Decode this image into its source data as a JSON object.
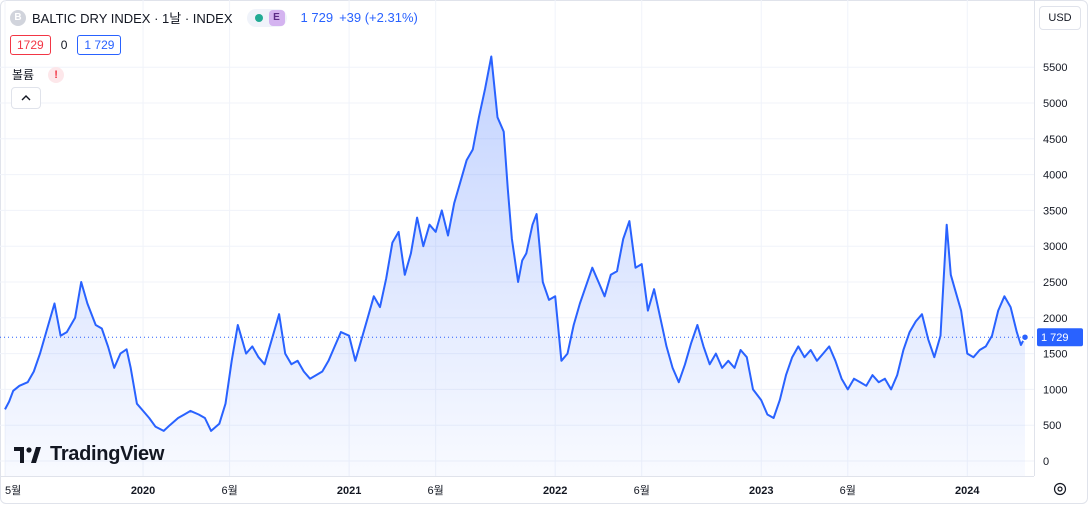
{
  "legend": {
    "symbol_initial": "B",
    "title": "BALTIC DRY INDEX · 1날 · INDEX",
    "badge": "E",
    "last": "1 729",
    "change": "+39 (+2.31%)"
  },
  "ohl": {
    "low_box": "1729",
    "middle": "0",
    "high_box": "1 729"
  },
  "volume": {
    "label": "볼륨",
    "warning": "!"
  },
  "currency": "USD",
  "logo_text": "TradingView",
  "price_tag": "1 729",
  "chart_data": {
    "type": "area",
    "y_ticks": [
      {
        "value": 0,
        "label": "0"
      },
      {
        "value": 500,
        "label": "500"
      },
      {
        "value": 1000,
        "label": "1000"
      },
      {
        "value": 1500,
        "label": "1500"
      },
      {
        "value": 2000,
        "label": "2000"
      },
      {
        "value": 2500,
        "label": "2500"
      },
      {
        "value": 3000,
        "label": "3000"
      },
      {
        "value": 3500,
        "label": "3500"
      },
      {
        "value": 4000,
        "label": "4000"
      },
      {
        "value": 4500,
        "label": "4500"
      },
      {
        "value": 5000,
        "label": "5000"
      },
      {
        "value": 5500,
        "label": "5500"
      }
    ],
    "x_ticks": [
      {
        "t": 2019.33,
        "label": "5월"
      },
      {
        "t": 2020.0,
        "label": "2020"
      },
      {
        "t": 2020.42,
        "label": "6월"
      },
      {
        "t": 2021.0,
        "label": "2021"
      },
      {
        "t": 2021.42,
        "label": "6월"
      },
      {
        "t": 2022.0,
        "label": "2022"
      },
      {
        "t": 2022.42,
        "label": "6월"
      },
      {
        "t": 2023.0,
        "label": "2023"
      },
      {
        "t": 2023.42,
        "label": "6월"
      },
      {
        "t": 2024.0,
        "label": "2024"
      }
    ],
    "ylim": [
      0,
      5500
    ],
    "last_value": 1729,
    "grid": true,
    "series": [
      {
        "points": [
          [
            2019.33,
            720
          ],
          [
            2019.35,
            830
          ],
          [
            2019.37,
            980
          ],
          [
            2019.4,
            1050
          ],
          [
            2019.44,
            1100
          ],
          [
            2019.47,
            1250
          ],
          [
            2019.5,
            1500
          ],
          [
            2019.53,
            1800
          ],
          [
            2019.57,
            2200
          ],
          [
            2019.6,
            1750
          ],
          [
            2019.63,
            1800
          ],
          [
            2019.67,
            2000
          ],
          [
            2019.7,
            2500
          ],
          [
            2019.73,
            2200
          ],
          [
            2019.77,
            1900
          ],
          [
            2019.8,
            1850
          ],
          [
            2019.83,
            1600
          ],
          [
            2019.86,
            1300
          ],
          [
            2019.89,
            1500
          ],
          [
            2019.92,
            1560
          ],
          [
            2019.94,
            1300
          ],
          [
            2019.97,
            800
          ],
          [
            2020.0,
            700
          ],
          [
            2020.03,
            600
          ],
          [
            2020.06,
            480
          ],
          [
            2020.1,
            420
          ],
          [
            2020.13,
            500
          ],
          [
            2020.17,
            600
          ],
          [
            2020.2,
            650
          ],
          [
            2020.23,
            700
          ],
          [
            2020.27,
            650
          ],
          [
            2020.3,
            600
          ],
          [
            2020.33,
            420
          ],
          [
            2020.37,
            520
          ],
          [
            2020.4,
            800
          ],
          [
            2020.43,
            1400
          ],
          [
            2020.46,
            1900
          ],
          [
            2020.48,
            1700
          ],
          [
            2020.5,
            1500
          ],
          [
            2020.53,
            1600
          ],
          [
            2020.56,
            1450
          ],
          [
            2020.59,
            1350
          ],
          [
            2020.63,
            1750
          ],
          [
            2020.66,
            2050
          ],
          [
            2020.69,
            1500
          ],
          [
            2020.72,
            1350
          ],
          [
            2020.75,
            1400
          ],
          [
            2020.78,
            1250
          ],
          [
            2020.81,
            1150
          ],
          [
            2020.84,
            1200
          ],
          [
            2020.87,
            1250
          ],
          [
            2020.9,
            1400
          ],
          [
            2020.93,
            1600
          ],
          [
            2020.96,
            1800
          ],
          [
            2021.0,
            1750
          ],
          [
            2021.03,
            1400
          ],
          [
            2021.06,
            1700
          ],
          [
            2021.09,
            2000
          ],
          [
            2021.12,
            2300
          ],
          [
            2021.15,
            2150
          ],
          [
            2021.18,
            2550
          ],
          [
            2021.21,
            3050
          ],
          [
            2021.24,
            3200
          ],
          [
            2021.27,
            2600
          ],
          [
            2021.3,
            2900
          ],
          [
            2021.33,
            3400
          ],
          [
            2021.36,
            3000
          ],
          [
            2021.39,
            3300
          ],
          [
            2021.42,
            3200
          ],
          [
            2021.45,
            3500
          ],
          [
            2021.48,
            3150
          ],
          [
            2021.51,
            3600
          ],
          [
            2021.54,
            3900
          ],
          [
            2021.57,
            4200
          ],
          [
            2021.6,
            4350
          ],
          [
            2021.63,
            4800
          ],
          [
            2021.66,
            5200
          ],
          [
            2021.69,
            5650
          ],
          [
            2021.72,
            4800
          ],
          [
            2021.75,
            4600
          ],
          [
            2021.77,
            3800
          ],
          [
            2021.79,
            3100
          ],
          [
            2021.82,
            2500
          ],
          [
            2021.84,
            2800
          ],
          [
            2021.86,
            2900
          ],
          [
            2021.89,
            3300
          ],
          [
            2021.91,
            3450
          ],
          [
            2021.94,
            2500
          ],
          [
            2021.97,
            2250
          ],
          [
            2022.0,
            2300
          ],
          [
            2022.03,
            1400
          ],
          [
            2022.06,
            1500
          ],
          [
            2022.09,
            1900
          ],
          [
            2022.12,
            2200
          ],
          [
            2022.15,
            2450
          ],
          [
            2022.18,
            2700
          ],
          [
            2022.21,
            2500
          ],
          [
            2022.24,
            2300
          ],
          [
            2022.27,
            2600
          ],
          [
            2022.3,
            2650
          ],
          [
            2022.33,
            3100
          ],
          [
            2022.36,
            3350
          ],
          [
            2022.39,
            2700
          ],
          [
            2022.42,
            2750
          ],
          [
            2022.45,
            2100
          ],
          [
            2022.48,
            2400
          ],
          [
            2022.51,
            2000
          ],
          [
            2022.54,
            1600
          ],
          [
            2022.57,
            1300
          ],
          [
            2022.6,
            1100
          ],
          [
            2022.63,
            1350
          ],
          [
            2022.66,
            1650
          ],
          [
            2022.69,
            1900
          ],
          [
            2022.72,
            1600
          ],
          [
            2022.75,
            1350
          ],
          [
            2022.78,
            1500
          ],
          [
            2022.81,
            1300
          ],
          [
            2022.84,
            1400
          ],
          [
            2022.87,
            1300
          ],
          [
            2022.9,
            1550
          ],
          [
            2022.93,
            1450
          ],
          [
            2022.96,
            1000
          ],
          [
            2023.0,
            850
          ],
          [
            2023.03,
            650
          ],
          [
            2023.06,
            600
          ],
          [
            2023.09,
            850
          ],
          [
            2023.12,
            1200
          ],
          [
            2023.15,
            1450
          ],
          [
            2023.18,
            1600
          ],
          [
            2023.21,
            1450
          ],
          [
            2023.24,
            1550
          ],
          [
            2023.27,
            1400
          ],
          [
            2023.3,
            1500
          ],
          [
            2023.33,
            1600
          ],
          [
            2023.36,
            1400
          ],
          [
            2023.39,
            1150
          ],
          [
            2023.42,
            1000
          ],
          [
            2023.45,
            1150
          ],
          [
            2023.48,
            1100
          ],
          [
            2023.51,
            1050
          ],
          [
            2023.54,
            1200
          ],
          [
            2023.57,
            1100
          ],
          [
            2023.6,
            1150
          ],
          [
            2023.63,
            1000
          ],
          [
            2023.66,
            1200
          ],
          [
            2023.69,
            1550
          ],
          [
            2023.72,
            1800
          ],
          [
            2023.75,
            1950
          ],
          [
            2023.78,
            2050
          ],
          [
            2023.81,
            1700
          ],
          [
            2023.84,
            1450
          ],
          [
            2023.87,
            1750
          ],
          [
            2023.9,
            3300
          ],
          [
            2023.92,
            2600
          ],
          [
            2023.94,
            2400
          ],
          [
            2023.97,
            2100
          ],
          [
            2024.0,
            1500
          ],
          [
            2024.03,
            1450
          ],
          [
            2024.06,
            1550
          ],
          [
            2024.09,
            1600
          ],
          [
            2024.12,
            1750
          ],
          [
            2024.15,
            2100
          ],
          [
            2024.18,
            2300
          ],
          [
            2024.21,
            2150
          ],
          [
            2024.24,
            1800
          ],
          [
            2024.26,
            1620
          ],
          [
            2024.28,
            1729
          ]
        ]
      }
    ]
  }
}
